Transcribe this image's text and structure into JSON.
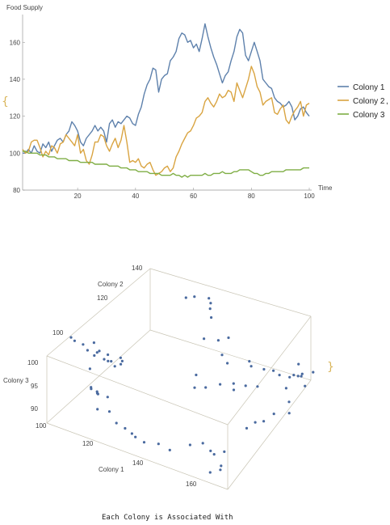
{
  "chart_data": [
    {
      "type": "line",
      "title": "",
      "xlabel": "Time",
      "ylabel": "Food Supply",
      "xlim": [
        1,
        100
      ],
      "ylim": [
        80,
        175
      ],
      "x_ticks": [
        "20",
        "40",
        "60",
        "80",
        "100"
      ],
      "y_ticks": [
        "80",
        "100",
        "120",
        "140",
        "160"
      ],
      "legend_position": "right",
      "series": [
        {
          "name": "Colony 1",
          "color": "#5e81ac",
          "values": [
            100,
            100,
            102,
            100,
            104,
            101,
            100,
            105,
            103,
            106,
            101,
            104,
            107,
            108,
            106,
            110,
            112,
            117,
            115,
            112,
            106,
            104,
            108,
            110,
            112,
            115,
            112,
            114,
            112,
            106,
            116,
            118,
            114,
            117,
            116,
            118,
            120,
            119,
            116,
            115,
            121,
            125,
            132,
            137,
            140,
            146,
            145,
            133,
            140,
            142,
            143,
            150,
            152,
            155,
            162,
            165,
            164,
            160,
            161,
            157,
            159,
            155,
            162,
            170,
            163,
            157,
            152,
            148,
            143,
            138,
            142,
            144,
            150,
            155,
            163,
            167,
            165,
            153,
            150,
            155,
            160,
            155,
            150,
            140,
            138,
            136,
            135,
            130,
            128,
            127,
            125,
            126,
            128,
            125,
            118,
            120,
            124,
            125,
            122,
            120
          ]
        },
        {
          "name": "Colony 2",
          "color": "#d9a441",
          "values": [
            102,
            100,
            101,
            106,
            107,
            107,
            103,
            98,
            101,
            99,
            104,
            103,
            100,
            105,
            106,
            110,
            108,
            106,
            104,
            110,
            100,
            102,
            96,
            94,
            99,
            106,
            106,
            110,
            109,
            104,
            101,
            105,
            108,
            103,
            107,
            115,
            106,
            95,
            96,
            95,
            97,
            93,
            92,
            94,
            95,
            91,
            88,
            89,
            90,
            92,
            93,
            90,
            92,
            98,
            101,
            105,
            108,
            111,
            112,
            115,
            119,
            120,
            122,
            128,
            130,
            127,
            125,
            128,
            132,
            130,
            131,
            134,
            133,
            128,
            138,
            134,
            130,
            135,
            140,
            147,
            143,
            136,
            133,
            126,
            128,
            129,
            130,
            122,
            121,
            124,
            126,
            118,
            116,
            120,
            123,
            125,
            128,
            120,
            126,
            127
          ]
        },
        {
          "name": "Colony 3",
          "color": "#7fae45",
          "values": [
            101,
            101,
            100,
            100,
            100,
            100,
            99,
            99,
            99,
            98,
            98,
            98,
            97,
            97,
            97,
            97,
            96,
            96,
            96,
            96,
            95,
            95,
            95,
            95,
            95,
            94,
            94,
            94,
            94,
            94,
            93,
            93,
            93,
            93,
            92,
            92,
            92,
            91,
            91,
            91,
            90,
            90,
            90,
            90,
            89,
            89,
            89,
            89,
            88,
            88,
            88,
            88,
            89,
            88,
            88,
            87,
            88,
            87,
            88,
            88,
            88,
            88,
            88,
            89,
            88,
            88,
            89,
            89,
            89,
            90,
            89,
            89,
            89,
            90,
            90,
            91,
            91,
            91,
            91,
            90,
            89,
            89,
            88,
            88,
            89,
            89,
            90,
            90,
            90,
            90,
            90,
            91,
            91,
            91,
            91,
            91,
            91,
            92,
            92,
            92
          ]
        }
      ]
    },
    {
      "type": "scatter",
      "title": "",
      "x_axis": {
        "label": "Colony 1",
        "ticks": [
          "120",
          "140",
          "160"
        ]
      },
      "y_axis": {
        "label": "Colony 2",
        "ticks": [
          "120",
          "140"
        ]
      },
      "z_axis": {
        "label": "Colony 3",
        "ticks": [
          "90",
          "95",
          "100"
        ]
      },
      "left_ticks": [
        "100"
      ],
      "front_ticks": [
        "100"
      ],
      "point_color": "#4a6a9f",
      "points": [
        [
          101,
          101,
          100
        ],
        [
          103,
          100,
          100
        ],
        [
          105,
          102,
          99
        ],
        [
          106,
          107,
          98
        ],
        [
          108,
          100,
          99
        ],
        [
          110,
          104,
          98
        ],
        [
          110,
          101,
          98
        ],
        [
          112,
          106,
          97
        ],
        [
          114,
          103,
          97
        ],
        [
          115,
          109,
          96
        ],
        [
          116,
          104,
          96
        ],
        [
          117,
          106,
          96
        ],
        [
          115,
          110,
          95
        ],
        [
          112,
          108,
          95
        ],
        [
          108,
          110,
          94
        ],
        [
          104,
          112,
          94
        ],
        [
          107,
          103,
          94
        ],
        [
          112,
          96,
          93
        ],
        [
          115,
          95,
          93
        ],
        [
          119,
          95,
          93
        ],
        [
          114,
          97,
          92
        ],
        [
          113,
          98,
          92
        ],
        [
          110,
          99,
          92
        ],
        [
          117,
          92,
          91
        ],
        [
          121,
          93,
          91
        ],
        [
          125,
          91,
          90
        ],
        [
          129,
          90,
          90
        ],
        [
          131,
          91,
          89
        ],
        [
          133,
          90,
          89
        ],
        [
          137,
          89,
          89
        ],
        [
          140,
          93,
          88
        ],
        [
          145,
          92,
          88
        ],
        [
          149,
          98,
          88
        ],
        [
          152,
          101,
          88
        ],
        [
          155,
          101,
          87
        ],
        [
          157,
          100,
          87
        ],
        [
          159,
          103,
          87
        ],
        [
          161,
          98,
          86
        ],
        [
          162,
          96,
          86
        ],
        [
          160,
          93,
          86
        ],
        [
          141,
          114,
          96
        ],
        [
          143,
          110,
          95
        ],
        [
          146,
          112,
          95
        ],
        [
          149,
          116,
          95
        ],
        [
          151,
          121,
          94
        ],
        [
          153,
          118,
          94
        ],
        [
          155,
          122,
          94
        ],
        [
          157,
          126,
          93
        ],
        [
          142,
          128,
          96
        ],
        [
          146,
          125,
          96
        ],
        [
          150,
          132,
          95
        ],
        [
          152,
          130,
          95
        ],
        [
          155,
          133,
          94
        ],
        [
          158,
          134,
          94
        ],
        [
          161,
          133,
          94
        ],
        [
          163,
          136,
          93
        ],
        [
          165,
          138,
          93
        ],
        [
          164,
          142,
          92
        ],
        [
          162,
          140,
          92
        ],
        [
          160,
          146,
          92
        ],
        [
          167,
          139,
          91
        ],
        [
          165,
          147,
          91
        ],
        [
          163,
          143,
          91
        ],
        [
          161,
          137,
          90
        ],
        [
          166,
          131,
          90
        ],
        [
          168,
          128,
          89
        ],
        [
          164,
          125,
          89
        ],
        [
          162,
          122,
          88
        ],
        [
          160,
          120,
          88
        ],
        [
          158,
          118,
          87
        ],
        [
          135,
          128,
          98
        ],
        [
          138,
          132,
          97
        ],
        [
          140,
          135,
          97
        ],
        [
          132,
          137,
          99
        ],
        [
          129,
          141,
          99
        ],
        [
          126,
          146,
          98
        ],
        [
          124,
          148,
          98
        ],
        [
          121,
          144,
          99
        ],
        [
          119,
          142,
          99
        ]
      ]
    }
  ],
  "caption": "Each Colony is Associated With"
}
